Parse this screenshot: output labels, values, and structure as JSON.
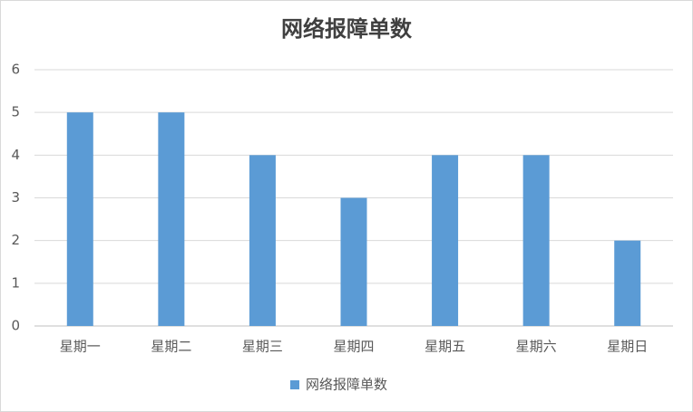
{
  "chart_data": {
    "type": "bar",
    "title": "网络报障单数",
    "categories": [
      "星期一",
      "星期二",
      "星期三",
      "星期四",
      "星期五",
      "星期六",
      "星期日"
    ],
    "series": [
      {
        "name": "网络报障单数",
        "color": "#5b9bd5",
        "values": [
          5,
          5,
          4,
          3,
          4,
          4,
          2
        ]
      }
    ],
    "ylim": [
      0,
      6
    ],
    "yticks": [
      0,
      1,
      2,
      3,
      4,
      5,
      6
    ],
    "grid": true,
    "legend": "bottom"
  }
}
